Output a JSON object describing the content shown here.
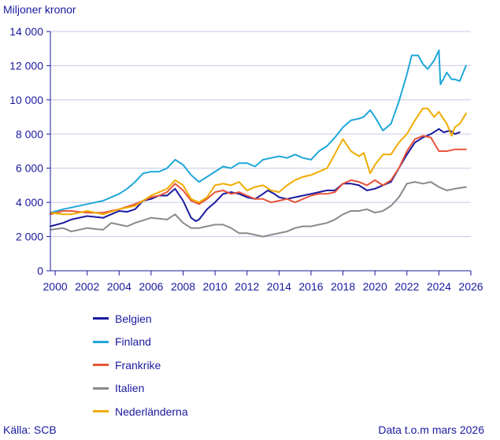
{
  "chart_data": {
    "type": "line",
    "ylabel": "Miljoner kronor",
    "ylim": [
      0,
      14000
    ],
    "xlim": [
      1999.7,
      2026
    ],
    "yticks": [
      0,
      2000,
      4000,
      6000,
      8000,
      10000,
      12000,
      14000
    ],
    "ytick_labels": [
      "0",
      "2 000",
      "4 000",
      "6 000",
      "8 000",
      "10 000",
      "12 000",
      "14 000"
    ],
    "xticks": [
      2000,
      2002,
      2004,
      2006,
      2008,
      2010,
      2012,
      2014,
      2016,
      2018,
      2020,
      2022,
      2024,
      2026
    ],
    "xtick_labels": [
      "2000",
      "2002",
      "2004",
      "2006",
      "2008",
      "2010",
      "2012",
      "2014",
      "2016",
      "2018",
      "2020",
      "2022",
      "2024",
      "2026"
    ],
    "grid": true,
    "legend_position": "bottom-left",
    "series": [
      {
        "name": "Belgien",
        "color": "#1a1a9e",
        "x": [
          1999.7,
          2000.5,
          2001.0,
          2002.0,
          2003.0,
          2003.5,
          2004.0,
          2004.5,
          2005.0,
          2005.5,
          2006.0,
          2006.5,
          2007.0,
          2007.5,
          2008.0,
          2008.5,
          2008.8,
          2009.0,
          2009.5,
          2010.0,
          2010.5,
          2011.0,
          2011.5,
          2012.0,
          2012.5,
          2013.0,
          2013.3,
          2013.7,
          2014.0,
          2014.5,
          2015.0,
          2015.5,
          2016.0,
          2016.5,
          2017.0,
          2017.5,
          2018.0,
          2018.5,
          2019.0,
          2019.5,
          2020.0,
          2020.5,
          2021.0,
          2021.5,
          2022.0,
          2022.5,
          2023.0,
          2023.5,
          2024.0,
          2024.3,
          2024.7,
          2025.0,
          2025.3
        ],
        "values": [
          2600,
          2800,
          3000,
          3200,
          3100,
          3300,
          3500,
          3450,
          3600,
          4100,
          4200,
          4400,
          4400,
          4800,
          4100,
          3100,
          2900,
          3000,
          3600,
          4000,
          4500,
          4600,
          4500,
          4300,
          4200,
          4500,
          4700,
          4500,
          4300,
          4200,
          4300,
          4400,
          4500,
          4600,
          4700,
          4700,
          5100,
          5100,
          5000,
          4700,
          4800,
          5000,
          5200,
          6000,
          6800,
          7500,
          7800,
          8000,
          8300,
          8100,
          8200,
          8000,
          8100
        ]
      },
      {
        "name": "Finland",
        "color": "#1fa7d9",
        "x": [
          1999.7,
          2000.5,
          2001.0,
          2002.0,
          2003.0,
          2004.0,
          2004.5,
          2005.0,
          2005.5,
          2006.0,
          2006.5,
          2007.0,
          2007.5,
          2008.0,
          2008.5,
          2009.0,
          2009.5,
          2010.0,
          2010.5,
          2011.0,
          2011.5,
          2012.0,
          2012.5,
          2013.0,
          2013.5,
          2014.0,
          2014.5,
          2015.0,
          2015.5,
          2016.0,
          2016.5,
          2017.0,
          2017.5,
          2018.0,
          2018.5,
          2019.0,
          2019.3,
          2019.7,
          2020.0,
          2020.5,
          2021.0,
          2021.5,
          2022.0,
          2022.3,
          2022.7,
          2023.0,
          2023.3,
          2023.7,
          2024.0,
          2024.1,
          2024.5,
          2024.8,
          2025.0,
          2025.3,
          2025.7
        ],
        "values": [
          3400,
          3600,
          3700,
          3900,
          4100,
          4500,
          4800,
          5200,
          5700,
          5800,
          5800,
          6000,
          6500,
          6200,
          5600,
          5200,
          5500,
          5800,
          6100,
          6000,
          6300,
          6300,
          6100,
          6500,
          6600,
          6700,
          6600,
          6800,
          6600,
          6500,
          7000,
          7300,
          7800,
          8400,
          8800,
          8900,
          9000,
          9400,
          9000,
          8200,
          8600,
          9900,
          11500,
          12600,
          12600,
          12100,
          11800,
          12300,
          12900,
          10900,
          11600,
          11200,
          11200,
          11100,
          12000
        ]
      },
      {
        "name": "Frankrike",
        "color": "#e8553b",
        "x": [
          1999.7,
          2000.5,
          2001.0,
          2002.0,
          2003.0,
          2004.0,
          2005.0,
          2006.0,
          2006.5,
          2007.0,
          2007.5,
          2008.0,
          2008.5,
          2009.0,
          2009.5,
          2010.0,
          2010.5,
          2011.0,
          2011.5,
          2012.0,
          2012.5,
          2013.0,
          2013.5,
          2014.0,
          2014.5,
          2015.0,
          2015.5,
          2016.0,
          2016.5,
          2017.0,
          2017.5,
          2018.0,
          2018.5,
          2019.0,
          2019.5,
          2020.0,
          2020.5,
          2021.0,
          2021.5,
          2022.0,
          2022.5,
          2023.0,
          2023.5,
          2024.0,
          2024.5,
          2025.0,
          2025.7
        ],
        "values": [
          3300,
          3500,
          3500,
          3400,
          3400,
          3600,
          3900,
          4300,
          4400,
          4600,
          5100,
          4700,
          4100,
          3900,
          4200,
          4600,
          4700,
          4500,
          4600,
          4400,
          4200,
          4200,
          4000,
          4100,
          4200,
          4000,
          4200,
          4400,
          4500,
          4500,
          4600,
          5100,
          5300,
          5200,
          5000,
          5300,
          5000,
          5300,
          6000,
          7000,
          7700,
          7900,
          7800,
          7000,
          7000,
          7100,
          7100
        ]
      },
      {
        "name": "Italien",
        "color": "#8a8a8a",
        "x": [
          1999.7,
          2000.5,
          2001.0,
          2002.0,
          2003.0,
          2003.5,
          2004.0,
          2004.5,
          2005.0,
          2006.0,
          2007.0,
          2007.5,
          2008.0,
          2008.5,
          2009.0,
          2009.5,
          2010.0,
          2010.5,
          2011.0,
          2011.5,
          2012.0,
          2012.5,
          2013.0,
          2013.5,
          2014.0,
          2014.5,
          2015.0,
          2015.5,
          2016.0,
          2016.5,
          2017.0,
          2017.5,
          2018.0,
          2018.5,
          2019.0,
          2019.5,
          2020.0,
          2020.5,
          2021.0,
          2021.5,
          2022.0,
          2022.5,
          2023.0,
          2023.5,
          2024.0,
          2024.5,
          2025.0,
          2025.7
        ],
        "values": [
          2400,
          2500,
          2300,
          2500,
          2400,
          2800,
          2700,
          2600,
          2800,
          3100,
          3000,
          3300,
          2800,
          2500,
          2500,
          2600,
          2700,
          2700,
          2500,
          2200,
          2200,
          2100,
          2000,
          2100,
          2200,
          2300,
          2500,
          2600,
          2600,
          2700,
          2800,
          3000,
          3300,
          3500,
          3500,
          3600,
          3400,
          3500,
          3800,
          4300,
          5100,
          5200,
          5100,
          5200,
          4900,
          4700,
          4800,
          4900
        ]
      },
      {
        "name": "Nederländerna",
        "color": "#f0ac00",
        "x": [
          1999.7,
          2000.5,
          2001.0,
          2002.0,
          2003.0,
          2004.0,
          2005.0,
          2006.0,
          2006.5,
          2007.0,
          2007.5,
          2008.0,
          2008.5,
          2009.0,
          2009.5,
          2010.0,
          2010.5,
          2011.0,
          2011.5,
          2012.0,
          2012.5,
          2013.0,
          2013.5,
          2014.0,
          2014.5,
          2015.0,
          2015.5,
          2016.0,
          2016.5,
          2017.0,
          2017.3,
          2017.7,
          2018.0,
          2018.5,
          2019.0,
          2019.3,
          2019.7,
          2020.0,
          2020.5,
          2021.0,
          2021.5,
          2022.0,
          2022.5,
          2023.0,
          2023.3,
          2023.7,
          2024.0,
          2024.5,
          2024.8,
          2025.0,
          2025.3,
          2025.7
        ],
        "values": [
          3400,
          3300,
          3300,
          3500,
          3300,
          3600,
          3800,
          4400,
          4600,
          4800,
          5300,
          5000,
          4200,
          4000,
          4300,
          5000,
          5100,
          5000,
          5200,
          4700,
          4900,
          5000,
          4700,
          4600,
          5000,
          5300,
          5500,
          5600,
          5800,
          6000,
          6500,
          7200,
          7700,
          7000,
          6700,
          6900,
          5700,
          6200,
          6800,
          6800,
          7500,
          8000,
          8800,
          9500,
          9500,
          9000,
          9300,
          8600,
          7900,
          8400,
          8600,
          9200
        ]
      }
    ]
  },
  "source_text": "Källa: SCB",
  "note_text": "Data t.o.m mars 2026"
}
